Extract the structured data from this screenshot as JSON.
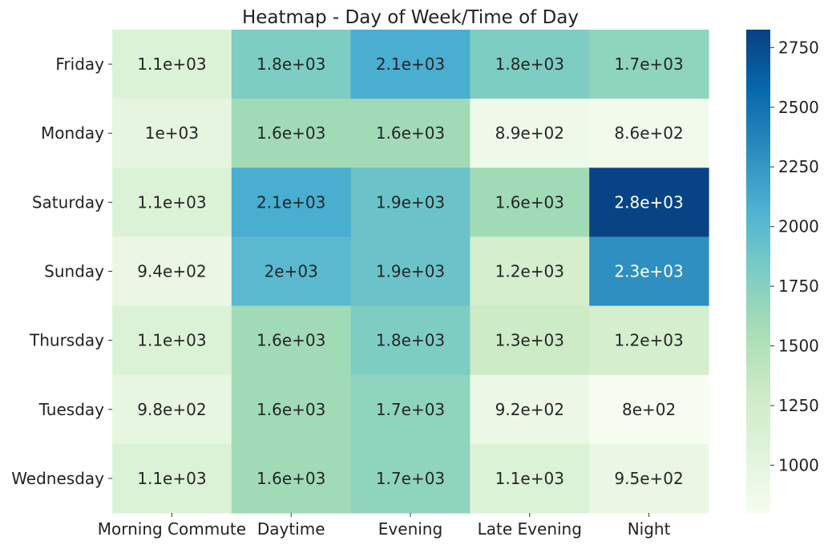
{
  "chart_data": {
    "type": "heatmap",
    "title": "Heatmap - Day of Week/Time of Day",
    "xlabel": "",
    "ylabel": "",
    "x_categories": [
      "Morning Commute",
      "Daytime",
      "Evening",
      "Late Evening",
      "Night"
    ],
    "y_categories": [
      "Friday",
      "Monday",
      "Saturday",
      "Sunday",
      "Thursday",
      "Tuesday",
      "Wednesday"
    ],
    "values": [
      [
        1100,
        1800,
        2100,
        1800,
        1700
      ],
      [
        1000,
        1600,
        1600,
        890,
        860
      ],
      [
        1100,
        2100,
        1900,
        1600,
        2800
      ],
      [
        940,
        2000,
        1900,
        1200,
        2300
      ],
      [
        1100,
        1600,
        1800,
        1300,
        1200
      ],
      [
        980,
        1600,
        1700,
        920,
        800
      ],
      [
        1100,
        1600,
        1700,
        1100,
        950
      ]
    ],
    "annotations": [
      [
        "1.1e+03",
        "1.8e+03",
        "2.1e+03",
        "1.8e+03",
        "1.7e+03"
      ],
      [
        "1e+03",
        "1.6e+03",
        "1.6e+03",
        "8.9e+02",
        "8.6e+02"
      ],
      [
        "1.1e+03",
        "2.1e+03",
        "1.9e+03",
        "1.6e+03",
        "2.8e+03"
      ],
      [
        "9.4e+02",
        "2e+03",
        "1.9e+03",
        "1.2e+03",
        "2.3e+03"
      ],
      [
        "1.1e+03",
        "1.6e+03",
        "1.8e+03",
        "1.3e+03",
        "1.2e+03"
      ],
      [
        "9.8e+02",
        "1.6e+03",
        "1.7e+03",
        "9.2e+02",
        "8e+02"
      ],
      [
        "1.1e+03",
        "1.6e+03",
        "1.7e+03",
        "1.1e+03",
        "9.5e+02"
      ]
    ],
    "colorbar": {
      "min": 800,
      "max": 2825,
      "ticks": [
        1000,
        1250,
        1500,
        1750,
        2000,
        2250,
        2500,
        2750
      ],
      "colormap": "GnBu"
    },
    "grid": false,
    "legend": "none"
  }
}
